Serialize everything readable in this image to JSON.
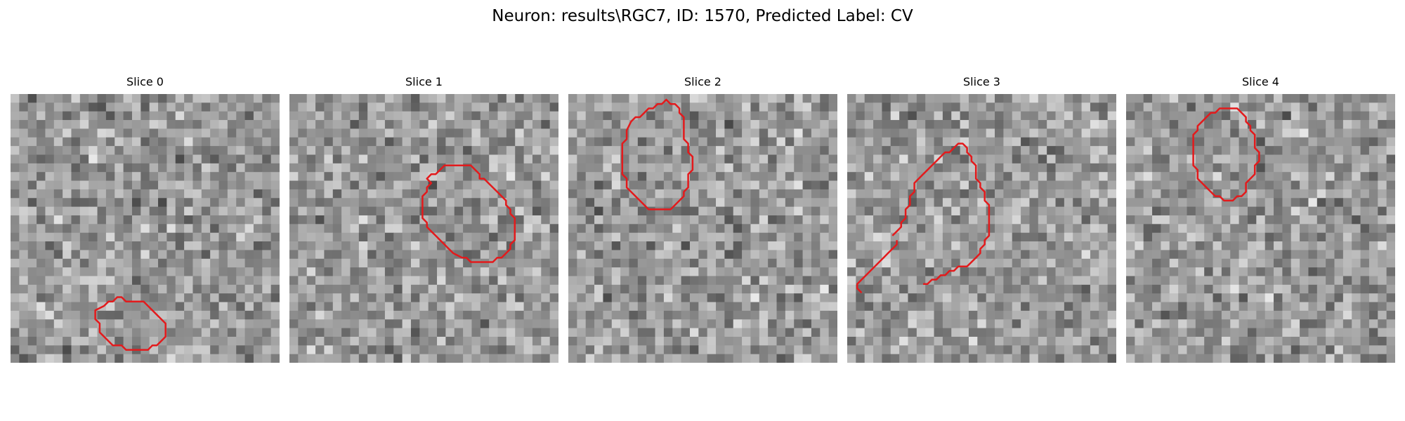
{
  "figure": {
    "title": "Neuron: results\\RGC7, ID: 1570, Predicted Label: CV"
  },
  "panels": [
    {
      "title": "Slice 0",
      "seed": 11,
      "contour_color": "#e31a1c",
      "contour": [
        [
          20,
          47
        ],
        [
          21,
          46
        ],
        [
          22,
          46
        ],
        [
          23,
          45
        ],
        [
          24,
          45
        ],
        [
          25,
          46
        ],
        [
          29,
          46
        ],
        [
          33,
          50
        ],
        [
          34,
          51
        ],
        [
          34,
          54
        ],
        [
          33,
          55
        ],
        [
          32,
          56
        ],
        [
          31,
          56
        ],
        [
          30,
          57
        ],
        [
          25,
          57
        ],
        [
          24,
          56
        ],
        [
          22,
          56
        ],
        [
          20,
          54
        ],
        [
          19,
          53
        ],
        [
          19,
          51
        ],
        [
          18,
          50
        ],
        [
          18,
          48
        ]
      ]
    },
    {
      "title": "Slice 1",
      "seed": 23,
      "contour_color": "#e31a1c",
      "contour": [
        [
          30,
          18
        ],
        [
          31,
          17
        ],
        [
          32,
          17
        ],
        [
          34,
          15
        ],
        [
          40,
          15
        ],
        [
          41,
          16
        ],
        [
          42,
          17
        ],
        [
          42,
          18
        ],
        [
          43,
          18
        ],
        [
          44,
          19
        ],
        [
          45,
          20
        ],
        [
          46,
          21
        ],
        [
          47,
          22
        ],
        [
          48,
          23
        ],
        [
          48,
          24
        ],
        [
          49,
          25
        ],
        [
          49,
          26
        ],
        [
          50,
          27
        ],
        [
          50,
          32
        ],
        [
          49,
          33
        ],
        [
          49,
          34
        ],
        [
          47,
          36
        ],
        [
          46,
          36
        ],
        [
          45,
          37
        ],
        [
          40,
          37
        ],
        [
          39,
          36
        ],
        [
          38,
          36
        ],
        [
          36,
          35
        ],
        [
          35,
          34
        ],
        [
          34,
          33
        ],
        [
          33,
          32
        ],
        [
          32,
          31
        ],
        [
          31,
          30
        ],
        [
          30,
          29
        ],
        [
          30,
          28
        ],
        [
          29,
          27
        ],
        [
          29,
          22
        ],
        [
          30,
          21
        ],
        [
          30,
          20
        ],
        [
          31,
          19
        ]
      ]
    },
    {
      "title": "Slice 2",
      "seed": 37,
      "contour_color": "#e31a1c",
      "contour": [
        [
          13,
          5
        ],
        [
          14,
          4
        ],
        [
          15,
          4
        ],
        [
          16,
          3
        ],
        [
          17,
          2
        ],
        [
          18,
          2
        ],
        [
          19,
          1
        ],
        [
          20,
          1
        ],
        [
          21,
          0
        ],
        [
          22,
          1
        ],
        [
          23,
          1
        ],
        [
          24,
          2
        ],
        [
          24,
          3
        ],
        [
          25,
          4
        ],
        [
          25,
          9
        ],
        [
          26,
          10
        ],
        [
          26,
          12
        ],
        [
          27,
          13
        ],
        [
          27,
          16
        ],
        [
          26,
          17
        ],
        [
          26,
          20
        ],
        [
          25,
          21
        ],
        [
          25,
          22
        ],
        [
          24,
          23
        ],
        [
          23,
          24
        ],
        [
          22,
          25
        ],
        [
          17,
          25
        ],
        [
          16,
          24
        ],
        [
          15,
          23
        ],
        [
          14,
          22
        ],
        [
          13,
          21
        ],
        [
          12,
          20
        ],
        [
          12,
          18
        ],
        [
          11,
          17
        ],
        [
          11,
          10
        ],
        [
          12,
          9
        ],
        [
          12,
          7
        ]
      ]
    },
    {
      "title": "Slice 3",
      "seed": 41,
      "contour_color": "#e31a1c",
      "contour": [
        [
          9,
          31
        ],
        [
          10,
          30
        ],
        [
          11,
          29
        ],
        [
          11,
          28
        ],
        [
          12,
          27
        ],
        [
          12,
          25
        ],
        [
          13,
          24
        ],
        [
          13,
          22
        ],
        [
          14,
          21
        ],
        [
          14,
          19
        ],
        [
          15,
          18
        ],
        [
          16,
          17
        ],
        [
          17,
          16
        ],
        [
          18,
          15
        ],
        [
          19,
          14
        ],
        [
          20,
          13
        ],
        [
          21,
          12
        ],
        [
          22,
          12
        ],
        [
          23,
          11
        ],
        [
          24,
          10
        ],
        [
          25,
          10
        ],
        [
          26,
          11
        ],
        [
          26,
          12
        ],
        [
          27,
          13
        ],
        [
          27,
          14
        ],
        [
          28,
          15
        ],
        [
          28,
          18
        ],
        [
          29,
          19
        ],
        [
          29,
          20
        ],
        [
          30,
          21
        ],
        [
          30,
          23
        ],
        [
          31,
          24
        ],
        [
          31,
          31
        ],
        [
          30,
          32
        ],
        [
          30,
          33
        ],
        [
          29,
          34
        ],
        [
          29,
          35
        ],
        [
          28,
          36
        ],
        [
          27,
          37
        ],
        [
          26,
          38
        ],
        [
          24,
          38
        ],
        [
          23,
          39
        ],
        [
          22,
          39
        ],
        [
          21,
          40
        ],
        [
          20,
          40
        ],
        [
          19,
          41
        ],
        [
          18,
          41
        ],
        [
          17,
          42
        ],
        [
          16,
          42
        ]
      ],
      "contour_extra": [
        [
          2,
          44
        ],
        [
          1,
          43
        ],
        [
          1,
          42
        ],
        [
          2,
          41
        ],
        [
          3,
          40
        ],
        [
          4,
          39
        ],
        [
          5,
          38
        ],
        [
          6,
          37
        ],
        [
          7,
          36
        ],
        [
          8,
          35
        ],
        [
          9,
          34
        ],
        [
          10,
          33
        ],
        [
          10,
          32
        ]
      ]
    },
    {
      "title": "Slice 4",
      "seed": 53,
      "contour_color": "#e31a1c",
      "contour": [
        [
          17,
          4
        ],
        [
          18,
          3
        ],
        [
          19,
          3
        ],
        [
          20,
          2
        ],
        [
          24,
          2
        ],
        [
          25,
          3
        ],
        [
          26,
          4
        ],
        [
          26,
          5
        ],
        [
          27,
          6
        ],
        [
          27,
          7
        ],
        [
          28,
          8
        ],
        [
          28,
          11
        ],
        [
          29,
          12
        ],
        [
          29,
          14
        ],
        [
          28,
          15
        ],
        [
          28,
          17
        ],
        [
          27,
          18
        ],
        [
          26,
          19
        ],
        [
          26,
          21
        ],
        [
          25,
          22
        ],
        [
          24,
          22
        ],
        [
          23,
          23
        ],
        [
          21,
          23
        ],
        [
          20,
          22
        ],
        [
          19,
          22
        ],
        [
          18,
          21
        ],
        [
          17,
          20
        ],
        [
          16,
          19
        ],
        [
          15,
          18
        ],
        [
          15,
          16
        ],
        [
          14,
          15
        ],
        [
          14,
          8
        ],
        [
          15,
          7
        ],
        [
          15,
          6
        ],
        [
          16,
          5
        ]
      ]
    }
  ]
}
